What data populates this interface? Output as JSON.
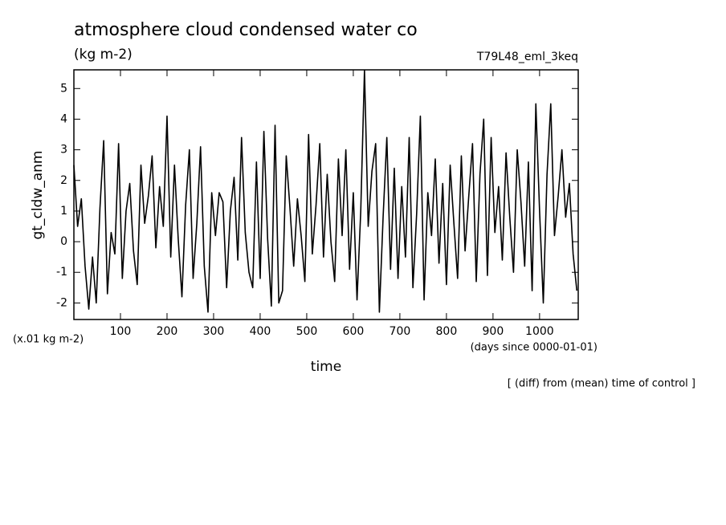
{
  "chart_data": {
    "type": "line",
    "title": "atmosphere cloud condensed water co",
    "subtitle": "(kg m-2)",
    "run_label": "T79L48_eml_3keq",
    "y_label": "gt_cldw_anm",
    "y_unit": "(x.01 kg m-2)",
    "x_label": "time",
    "x_unit": "(days since 0000-01-01)",
    "note": "[ (diff) from (mean) time of control ]",
    "xlim": [
      0,
      1083
    ],
    "ylim": [
      -2.54,
      5.61
    ],
    "xticks": [
      100,
      200,
      300,
      400,
      500,
      600,
      700,
      800,
      900,
      1000
    ],
    "yticks": [
      -2,
      -1,
      0,
      1,
      2,
      3,
      4,
      5
    ],
    "x": [
      0,
      8,
      16,
      24,
      32,
      40,
      48,
      56,
      64,
      72,
      80,
      88,
      96,
      104,
      112,
      120,
      128,
      136,
      144,
      152,
      160,
      168,
      176,
      184,
      192,
      200,
      208,
      216,
      224,
      232,
      240,
      248,
      256,
      264,
      272,
      280,
      288,
      296,
      304,
      312,
      320,
      328,
      336,
      344,
      352,
      360,
      368,
      376,
      384,
      392,
      400,
      408,
      416,
      424,
      432,
      440,
      448,
      456,
      464,
      472,
      480,
      488,
      496,
      504,
      512,
      520,
      528,
      536,
      544,
      552,
      560,
      568,
      576,
      584,
      592,
      600,
      608,
      616,
      624,
      632,
      640,
      648,
      656,
      664,
      672,
      680,
      688,
      696,
      704,
      712,
      720,
      728,
      736,
      744,
      752,
      760,
      768,
      776,
      784,
      792,
      800,
      808,
      816,
      824,
      832,
      840,
      848,
      856,
      864,
      872,
      880,
      888,
      896,
      904,
      912,
      920,
      928,
      936,
      944,
      952,
      960,
      968,
      976,
      984,
      992,
      1000,
      1008,
      1016,
      1024,
      1032,
      1040,
      1048,
      1056,
      1064,
      1072,
      1080
    ],
    "series": [
      {
        "name": "gt_cldw_anm",
        "color": "#000000",
        "values": [
          2.5,
          0.5,
          1.4,
          -0.8,
          -2.2,
          -0.5,
          -2.0,
          1.1,
          3.3,
          -1.7,
          0.3,
          -0.4,
          3.2,
          -1.2,
          1.0,
          1.9,
          -0.3,
          -1.4,
          2.5,
          0.6,
          1.5,
          2.8,
          -0.2,
          1.8,
          0.5,
          4.1,
          -0.5,
          2.5,
          0.1,
          -1.8,
          1.2,
          3.0,
          -1.2,
          0.6,
          3.1,
          -0.8,
          -2.3,
          1.6,
          0.2,
          1.6,
          1.3,
          -1.5,
          1.0,
          2.1,
          -0.6,
          3.4,
          0.3,
          -1.0,
          -1.5,
          2.6,
          -1.2,
          3.6,
          0.1,
          -2.1,
          3.8,
          -2.0,
          -1.6,
          2.8,
          1.1,
          -0.8,
          1.4,
          0.2,
          -1.3,
          3.5,
          -0.4,
          1.2,
          3.2,
          -0.5,
          2.2,
          0.0,
          -1.3,
          2.7,
          0.2,
          3.0,
          -0.9,
          1.6,
          -1.9,
          1.0,
          5.6,
          0.5,
          2.3,
          3.2,
          -2.3,
          0.8,
          3.4,
          -0.9,
          2.4,
          -1.2,
          1.8,
          -0.5,
          3.4,
          -1.5,
          0.9,
          4.1,
          -1.9,
          1.6,
          0.2,
          2.7,
          -0.7,
          1.9,
          -1.4,
          2.5,
          0.6,
          -1.2,
          2.8,
          -0.3,
          1.5,
          3.2,
          -1.3,
          2.2,
          4.0,
          -1.1,
          3.4,
          0.3,
          1.8,
          -0.6,
          2.9,
          0.8,
          -1.0,
          3.0,
          1.3,
          -0.8,
          2.6,
          -1.6,
          4.5,
          1.0,
          -2.0,
          2.2,
          4.5,
          0.2,
          1.5,
          3.0,
          0.8,
          1.9,
          -0.4,
          -1.6
        ]
      }
    ]
  }
}
